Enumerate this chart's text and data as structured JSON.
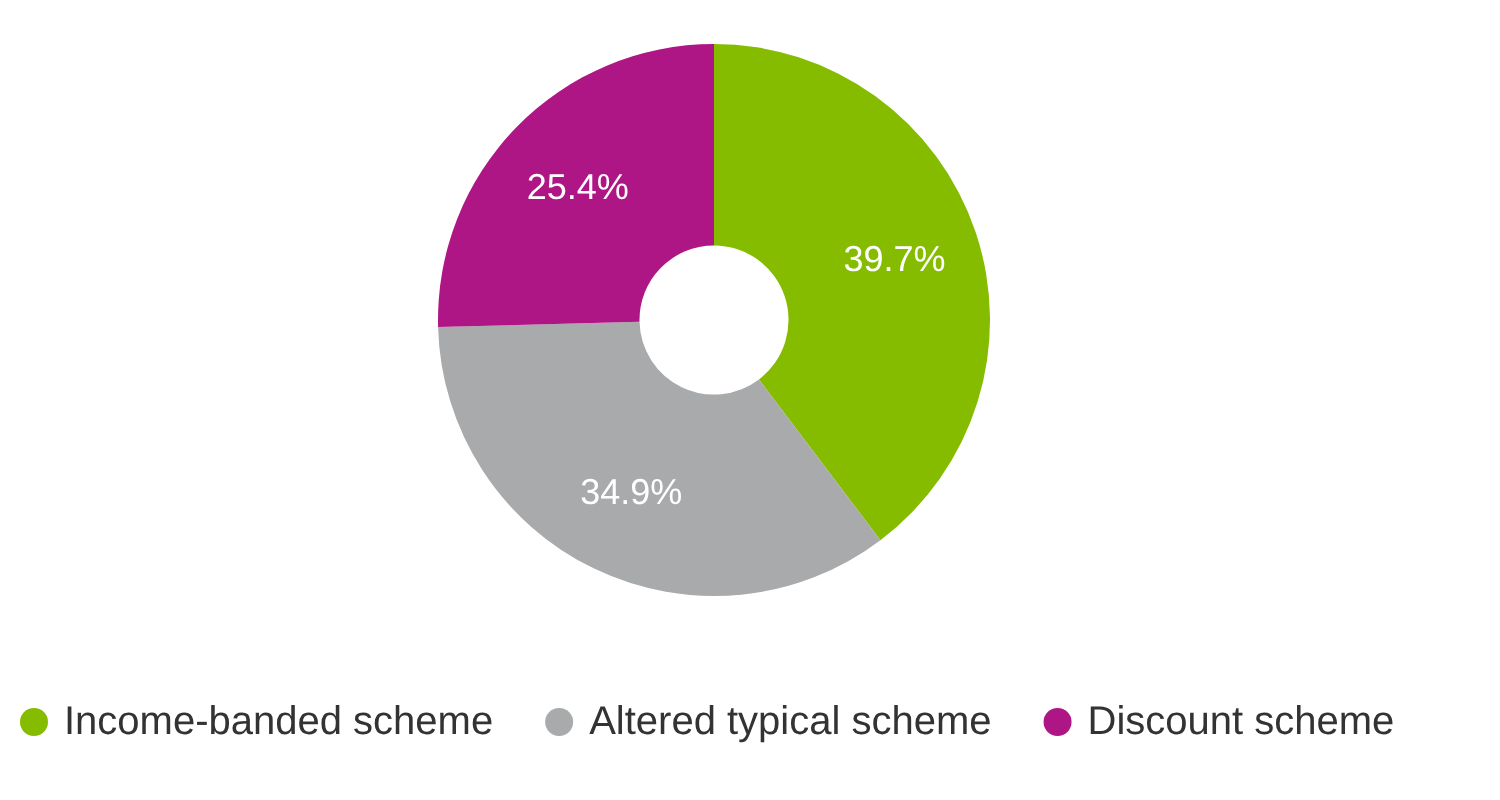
{
  "chart_data": {
    "type": "donut",
    "categories": [
      "Income-banded scheme",
      "Altered typical scheme",
      "Discount scheme"
    ],
    "values": [
      39.7,
      34.9,
      25.4
    ],
    "colors": [
      "#85bc00",
      "#a8aaab",
      "#af1685"
    ],
    "value_labels": [
      "39.7%",
      "34.9%",
      "25.4%"
    ],
    "legend": "bottom"
  }
}
